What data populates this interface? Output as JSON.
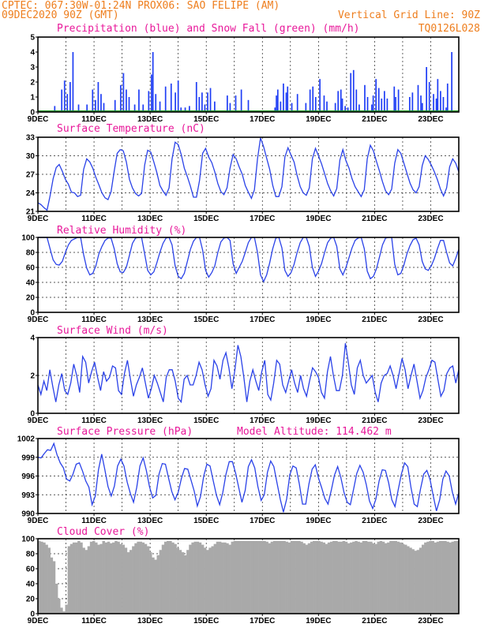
{
  "header": {
    "line1": "CPTEC:   067:30W-01:24N   PROX06: SAO FELIPE (AM)",
    "line2_left": "09DEC2020 90Z (GMT)",
    "line2_right": "Vertical Grid Line: 90Z",
    "line3_right": "TQ0126L028"
  },
  "colors": {
    "header": "#ee7e1e",
    "panel_title": "#e8189a",
    "precip": "#1f3ef5",
    "snow": "#1a9a1a",
    "line": "#2a42e8",
    "cloud": "#a9a9a9"
  },
  "x_axis": {
    "tick_labels": [
      "9DEC",
      "11DEC",
      "13DEC",
      "15DEC",
      "17DEC",
      "19DEC",
      "21DEC",
      "23DEC"
    ],
    "tick_days": [
      0,
      2,
      4,
      6,
      8,
      10,
      12,
      14
    ],
    "range_days": [
      0,
      15
    ]
  },
  "chart_data": [
    {
      "type": "bar",
      "title": "Precipitation (blue) and Snow Fall (green) (mm/h)",
      "ylim": [
        0,
        5
      ],
      "yticks": [
        0,
        1,
        2,
        3,
        4,
        5
      ],
      "grid": false,
      "series": [
        {
          "name": "Precipitation",
          "x": [
            0.6,
            0.85,
            0.95,
            1.05,
            1.15,
            1.25,
            1.45,
            1.75,
            1.95,
            2.05,
            2.15,
            2.25,
            2.35,
            2.75,
            2.95,
            3.05,
            3.15,
            3.25,
            3.45,
            3.6,
            3.75,
            3.95,
            4.05,
            4.1,
            4.2,
            4.35,
            4.55,
            4.75,
            4.9,
            5.0,
            5.1,
            5.25,
            5.4,
            5.65,
            5.75,
            5.85,
            5.95,
            6.05,
            6.15,
            6.3,
            6.75,
            6.85,
            7.05,
            7.25,
            7.5,
            8.45,
            8.5,
            8.55,
            8.65,
            8.75,
            8.85,
            8.9,
            9.05,
            9.25,
            9.55,
            9.7,
            9.8,
            9.9,
            10.05,
            10.2,
            10.3,
            10.6,
            10.7,
            10.8,
            10.85,
            10.95,
            11.05,
            11.15,
            11.25,
            11.35,
            11.45,
            11.65,
            11.75,
            11.9,
            11.95,
            12.05,
            12.15,
            12.25,
            12.35,
            12.45,
            12.7,
            12.75,
            12.85,
            13.25,
            13.35,
            13.55,
            13.65,
            13.7,
            13.85,
            13.95,
            14.1,
            14.2,
            14.25,
            14.35,
            14.45,
            14.55,
            14.6,
            14.75
          ],
          "values": [
            0.4,
            1.5,
            2.1,
            1.2,
            2.0,
            4.0,
            0.5,
            0.5,
            1.5,
            0.8,
            2.0,
            1.2,
            0.6,
            0.8,
            1.8,
            2.6,
            1.5,
            1.0,
            0.5,
            1.5,
            0.5,
            1.4,
            2.5,
            4.0,
            1.2,
            0.7,
            1.7,
            1.9,
            1.3,
            2.1,
            0.3,
            0.3,
            0.4,
            2.0,
            1.0,
            1.3,
            0.5,
            1.3,
            1.6,
            0.7,
            1.1,
            0.6,
            1.1,
            1.5,
            0.8,
            0.3,
            1.1,
            1.5,
            0.7,
            1.9,
            1.3,
            1.7,
            0.6,
            1.2,
            0.6,
            1.5,
            1.7,
            1.0,
            2.2,
            1.1,
            0.7,
            0.6,
            1.4,
            1.5,
            0.9,
            0.4,
            0.3,
            2.6,
            2.8,
            1.5,
            0.5,
            1.8,
            1.0,
            0.5,
            1.1,
            2.2,
            1.6,
            0.9,
            1.4,
            0.9,
            1.7,
            1.0,
            1.5,
            1.0,
            1.3,
            1.8,
            1.1,
            0.6,
            3.0,
            2.0,
            1.2,
            0.9,
            2.2,
            1.4,
            1.0,
            0.3,
            1.9,
            4.0
          ]
        },
        {
          "name": "Snow Fall",
          "x": [
            0,
            15
          ],
          "values": [
            0,
            0
          ]
        }
      ]
    },
    {
      "type": "line",
      "title": "Surface Temperature (nC)",
      "ylim": [
        21,
        33
      ],
      "yticks": [
        21,
        24,
        27,
        30,
        33
      ],
      "grid": true,
      "series": [
        {
          "name": "Surface Temperature",
          "values": [
            22.4,
            22.1,
            21.6,
            21.2,
            23.5,
            26.3,
            28.1,
            28.6,
            27.5,
            26.2,
            25.4,
            24.1,
            24.0,
            23.4,
            23.6,
            27.8,
            29.5,
            29.0,
            28.0,
            26.5,
            25.3,
            24.0,
            23.2,
            22.9,
            24.2,
            27.5,
            30.4,
            31.0,
            30.8,
            29.0,
            26.2,
            24.8,
            23.9,
            23.5,
            23.9,
            28.5,
            30.9,
            30.6,
            29.0,
            27.3,
            25.2,
            24.3,
            23.6,
            24.8,
            29.5,
            32.2,
            31.8,
            30.2,
            28.0,
            26.6,
            25.1,
            23.3,
            23.3,
            26.0,
            30.4,
            31.2,
            29.8,
            28.9,
            27.4,
            25.5,
            24.2,
            23.7,
            24.8,
            28.0,
            30.2,
            29.5,
            28.2,
            27.0,
            25.2,
            24.1,
            23.1,
            24.5,
            29.5,
            32.9,
            31.5,
            29.6,
            27.8,
            25.2,
            23.4,
            23.4,
            25.0,
            29.8,
            31.3,
            30.1,
            29.0,
            26.8,
            25.0,
            24.0,
            23.6,
            24.8,
            29.5,
            31.2,
            30.0,
            28.7,
            27.1,
            25.5,
            24.3,
            23.5,
            24.7,
            29.3,
            31.0,
            29.2,
            28.0,
            26.3,
            25.0,
            24.2,
            23.4,
            24.5,
            29.5,
            31.7,
            30.8,
            29.1,
            27.5,
            25.8,
            24.3,
            23.7,
            24.6,
            28.8,
            31.0,
            30.4,
            28.8,
            27.2,
            25.6,
            24.5,
            24.0,
            25.0,
            28.4,
            30.0,
            29.4,
            28.5,
            27.4,
            26.1,
            24.6,
            23.5,
            24.8,
            28.2,
            29.5,
            28.8,
            27.4
          ]
        }
      ]
    },
    {
      "type": "line",
      "title": "Relative Humidity (%)",
      "ylim": [
        0,
        100
      ],
      "yticks": [
        0,
        20,
        40,
        60,
        80,
        100
      ],
      "grid": true,
      "series": [
        {
          "name": "Relative Humidity",
          "values": [
            100,
            100,
            100,
            100,
            85,
            70,
            64,
            63,
            68,
            80,
            90,
            96,
            98,
            100,
            100,
            77,
            59,
            50,
            52,
            62,
            78,
            88,
            96,
            99,
            99,
            85,
            65,
            54,
            53,
            60,
            76,
            92,
            99,
            100,
            100,
            78,
            56,
            50,
            54,
            66,
            80,
            92,
            99,
            100,
            90,
            62,
            48,
            45,
            52,
            68,
            84,
            95,
            100,
            100,
            83,
            56,
            47,
            53,
            62,
            80,
            94,
            99,
            100,
            96,
            65,
            52,
            60,
            68,
            80,
            93,
            100,
            100,
            80,
            50,
            41,
            50,
            66,
            85,
            99,
            100,
            86,
            56,
            48,
            53,
            64,
            80,
            93,
            100,
            100,
            88,
            60,
            48,
            55,
            65,
            80,
            93,
            99,
            100,
            88,
            58,
            50,
            60,
            73,
            86,
            96,
            99,
            100,
            85,
            55,
            45,
            48,
            58,
            74,
            90,
            99,
            100,
            100,
            64,
            50,
            52,
            63,
            78,
            89,
            97,
            99,
            90,
            68,
            58,
            56,
            62,
            72,
            85,
            96,
            96,
            80,
            66,
            62,
            72,
            84
          ]
        }
      ]
    },
    {
      "type": "line",
      "title": "Surface Wind (m/s)",
      "ylim": [
        0,
        4
      ],
      "yticks": [
        0,
        2,
        4
      ],
      "grid": true,
      "series": [
        {
          "name": "Surface Wind",
          "values": [
            1.5,
            1.0,
            1.7,
            1.2,
            2.3,
            1.4,
            0.6,
            1.5,
            2.1,
            1.2,
            1.0,
            1.6,
            2.6,
            2.0,
            1.1,
            3.0,
            2.7,
            1.6,
            2.2,
            2.7,
            1.9,
            1.2,
            2.2,
            1.7,
            1.9,
            2.5,
            2.4,
            1.2,
            1.0,
            2.1,
            2.8,
            1.8,
            0.9,
            1.5,
            1.9,
            2.4,
            1.6,
            0.8,
            1.3,
            2.0,
            1.6,
            1.1,
            0.6,
            1.9,
            2.3,
            2.3,
            1.7,
            0.8,
            0.6,
            1.8,
            2.0,
            1.5,
            1.5,
            2.0,
            2.7,
            2.3,
            1.5,
            0.9,
            1.3,
            2.8,
            2.5,
            1.8,
            2.8,
            3.2,
            2.4,
            1.3,
            2.3,
            3.6,
            3.0,
            1.9,
            0.6,
            1.7,
            2.3,
            1.7,
            1.2,
            2.2,
            2.8,
            1.0,
            0.7,
            1.6,
            2.8,
            2.6,
            1.5,
            1.1,
            1.7,
            2.3,
            1.6,
            1.1,
            2.0,
            1.3,
            0.9,
            1.7,
            2.4,
            2.2,
            1.9,
            1.1,
            0.8,
            2.2,
            3.0,
            2.0,
            1.2,
            1.2,
            2.0,
            3.7,
            2.7,
            1.5,
            1.0,
            2.4,
            2.8,
            2.0,
            1.6,
            1.8,
            2.0,
            1.1,
            0.6,
            1.6,
            2.0,
            2.1,
            2.5,
            2.0,
            1.3,
            2.1,
            2.9,
            2.3,
            1.3,
            2.0,
            2.6,
            1.7,
            0.8,
            1.2,
            1.9,
            2.3,
            2.8,
            2.7,
            1.8,
            0.9,
            1.2,
            2.1,
            2.4,
            2.5,
            1.6,
            2.3
          ]
        }
      ]
    },
    {
      "type": "line",
      "title": "Surface Pressure (hPa)",
      "annotation": "Model Altitude: 114.462 m",
      "ylim": [
        990,
        1002
      ],
      "yticks": [
        990,
        993,
        996,
        999,
        1002
      ],
      "grid": true,
      "series": [
        {
          "name": "Surface Pressure",
          "values": [
            999.0,
            998.9,
            999.6,
            1000.2,
            1000.1,
            1001.2,
            999.4,
            998.1,
            997.3,
            995.5,
            995.2,
            996.3,
            997.9,
            998.1,
            996.8,
            995.2,
            994.2,
            991.4,
            992.8,
            997.0,
            999.5,
            997.0,
            994.3,
            992.8,
            994.4,
            997.6,
            998.7,
            997.6,
            995.0,
            993.2,
            991.8,
            994.2,
            997.6,
            998.9,
            996.9,
            994.3,
            992.5,
            992.9,
            996.3,
            998.0,
            997.9,
            995.6,
            993.5,
            992.2,
            993.4,
            995.6,
            997.2,
            997.1,
            995.4,
            993.6,
            991.2,
            992.7,
            996.0,
            997.9,
            997.6,
            995.2,
            992.9,
            991.4,
            993.4,
            996.3,
            998.3,
            998.3,
            996.5,
            994.1,
            991.8,
            993.7,
            997.5,
            998.6,
            997.3,
            994.3,
            992.1,
            993.0,
            996.6,
            998.4,
            997.5,
            994.9,
            992.3,
            990.2,
            992.3,
            996.2,
            997.6,
            997.3,
            994.7,
            991.5,
            991.5,
            994.7,
            997.1,
            997.8,
            995.7,
            994.1,
            992.4,
            991.5,
            993.7,
            996.1,
            997.5,
            995.8,
            993.4,
            991.8,
            991.4,
            993.9,
            996.4,
            997.7,
            996.6,
            994.6,
            992.0,
            990.8,
            992.3,
            995.2,
            997.0,
            996.9,
            994.9,
            992.2,
            991.1,
            993.8,
            996.3,
            998.1,
            997.5,
            994.2,
            991.5,
            991.1,
            993.9,
            996.3,
            996.9,
            995.4,
            992.8,
            990.4,
            992.2,
            995.5,
            996.8,
            996.0,
            993.4,
            991.5,
            993.3
          ]
        }
      ]
    },
    {
      "type": "area",
      "title": "Cloud Cover (%)",
      "ylim": [
        0,
        100
      ],
      "yticks": [
        0,
        20,
        40,
        60,
        80,
        100
      ],
      "grid": true,
      "series": [
        {
          "name": "Cloud Cover",
          "values": [
            97,
            96,
            95,
            92,
            88,
            75,
            70,
            40,
            20,
            8,
            3,
            12,
            90,
            93,
            95,
            95,
            97,
            95,
            88,
            85,
            90,
            96,
            97,
            95,
            92,
            93,
            97,
            95,
            96,
            94,
            95,
            97,
            96,
            93,
            92,
            88,
            82,
            85,
            90,
            94,
            96,
            96,
            95,
            93,
            90,
            82,
            75,
            72,
            78,
            85,
            92,
            96,
            97,
            97,
            95,
            93,
            88,
            85,
            82,
            78,
            85,
            92,
            95,
            96,
            96,
            95,
            92,
            88,
            85,
            88,
            90,
            93,
            96,
            96,
            95,
            95,
            94,
            92,
            96,
            97,
            97,
            97,
            97,
            97,
            97,
            97,
            97,
            97,
            97,
            97,
            97,
            97,
            96,
            94,
            96,
            97,
            97,
            97,
            97,
            97,
            96,
            95,
            97,
            97,
            97,
            97,
            96,
            94,
            92,
            94,
            96,
            97,
            97,
            97,
            96,
            95,
            93,
            95,
            96,
            97,
            97,
            96,
            96,
            97,
            96,
            94,
            95,
            96,
            97,
            96,
            95,
            97,
            97,
            96,
            96,
            94,
            93,
            96,
            97,
            96,
            94,
            95,
            97,
            97,
            97,
            96,
            95,
            93,
            92,
            90,
            88,
            86,
            84,
            85,
            88,
            92,
            95,
            96,
            97,
            97,
            95,
            96,
            97,
            97,
            97,
            96,
            95,
            96,
            97,
            97
          ]
        }
      ]
    }
  ]
}
